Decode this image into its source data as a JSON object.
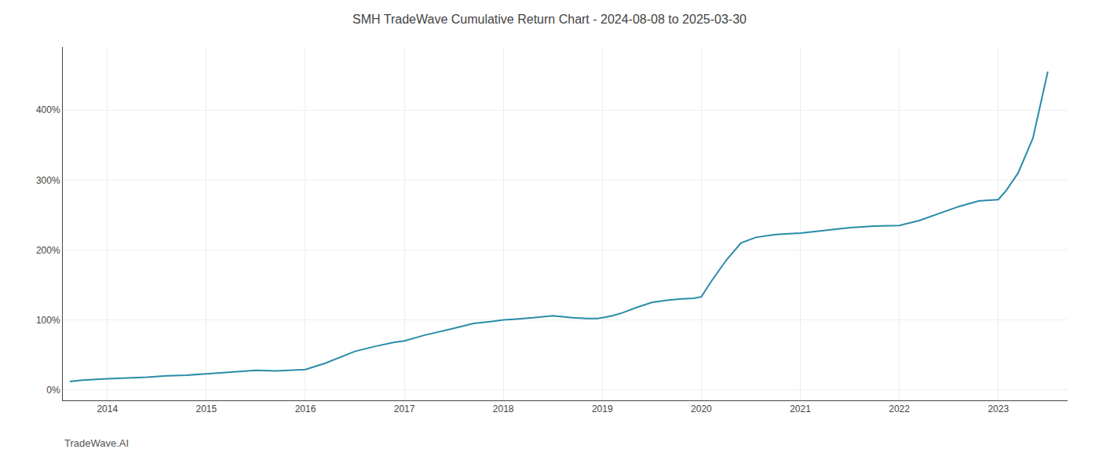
{
  "chart_data": {
    "type": "line",
    "title": "SMH TradeWave Cumulative Return Chart - 2024-08-08 to 2025-03-30",
    "annotations": [
      {
        "text": "TradeWave.AI"
      }
    ],
    "x": [
      2013.62,
      2013.75,
      2014.0,
      2014.2,
      2014.4,
      2014.6,
      2014.8,
      2015.0,
      2015.2,
      2015.5,
      2015.7,
      2015.9,
      2016.0,
      2016.2,
      2016.5,
      2016.7,
      2016.9,
      2017.0,
      2017.2,
      2017.5,
      2017.7,
      2017.9,
      2018.0,
      2018.1,
      2018.3,
      2018.5,
      2018.7,
      2018.85,
      2018.95,
      2019.0,
      2019.1,
      2019.2,
      2019.35,
      2019.5,
      2019.65,
      2019.8,
      2019.92,
      2020.0,
      2020.1,
      2020.25,
      2020.4,
      2020.55,
      2020.65,
      2020.75,
      2021.0,
      2021.25,
      2021.5,
      2021.75,
      2022.0,
      2022.2,
      2022.4,
      2022.6,
      2022.8,
      2023.0,
      2023.08,
      2023.2,
      2023.35,
      2023.5
    ],
    "values": [
      12,
      14,
      16,
      17,
      18,
      20,
      21,
      23,
      25,
      28,
      27,
      28,
      29,
      38,
      55,
      62,
      68,
      70,
      78,
      88,
      95,
      98,
      100,
      101,
      103,
      106,
      103,
      102,
      102,
      103,
      106,
      110,
      118,
      125,
      128,
      130,
      131,
      133,
      155,
      185,
      210,
      218,
      220,
      222,
      224,
      228,
      232,
      234,
      235,
      242,
      252,
      262,
      270,
      272,
      285,
      310,
      360,
      455
    ],
    "color": "#2a8ca8",
    "xlim": [
      2013.55,
      2023.7
    ],
    "xticks": [
      2014,
      2015,
      2016,
      2017,
      2018,
      2019,
      2020,
      2021,
      2022,
      2023
    ],
    "ylim": [
      -15,
      490
    ],
    "yticks": [
      {
        "value": 0,
        "label": "0%"
      },
      {
        "value": 100,
        "label": "100%"
      },
      {
        "value": 200,
        "label": "200%"
      },
      {
        "value": 300,
        "label": "300%"
      },
      {
        "value": 400,
        "label": "400%"
      }
    ],
    "grid": true
  }
}
